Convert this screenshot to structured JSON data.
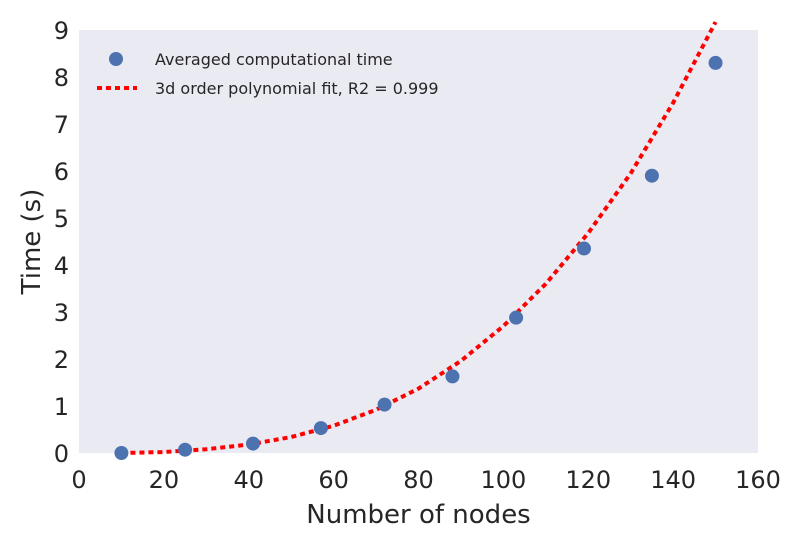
{
  "chart_data": {
    "type": "scatter",
    "xlabel": "Number of nodes",
    "ylabel": "Time (s)",
    "xlim": [
      0,
      160
    ],
    "ylim": [
      0,
      9
    ],
    "xticks": [
      0,
      20,
      40,
      60,
      80,
      100,
      120,
      140,
      160
    ],
    "yticks": [
      0,
      1,
      2,
      3,
      4,
      5,
      6,
      7,
      8,
      9
    ],
    "grid": false,
    "background_color": "#eaeaf2",
    "legend_position": "top-left",
    "series": [
      {
        "name": "Averaged computational time",
        "kind": "scatter",
        "color": "#4c72b0",
        "x": [
          10,
          25,
          41,
          57,
          72,
          88,
          103,
          119,
          135,
          150
        ],
        "y": [
          0.0,
          0.07,
          0.2,
          0.53,
          1.03,
          1.63,
          2.88,
          4.35,
          5.9,
          8.3
        ]
      },
      {
        "name": "3d order polynomial fit, R2 = 0.999",
        "kind": "line",
        "style": "dotted",
        "color": "#ff0000",
        "x": [
          10,
          20,
          30,
          40,
          50,
          60,
          70,
          80,
          90,
          100,
          110,
          120,
          130,
          140,
          150
        ],
        "y": [
          0.0,
          0.02,
          0.08,
          0.18,
          0.34,
          0.58,
          0.92,
          1.37,
          1.96,
          2.7,
          3.6,
          4.68,
          5.95,
          7.45,
          9.17
        ]
      }
    ]
  }
}
